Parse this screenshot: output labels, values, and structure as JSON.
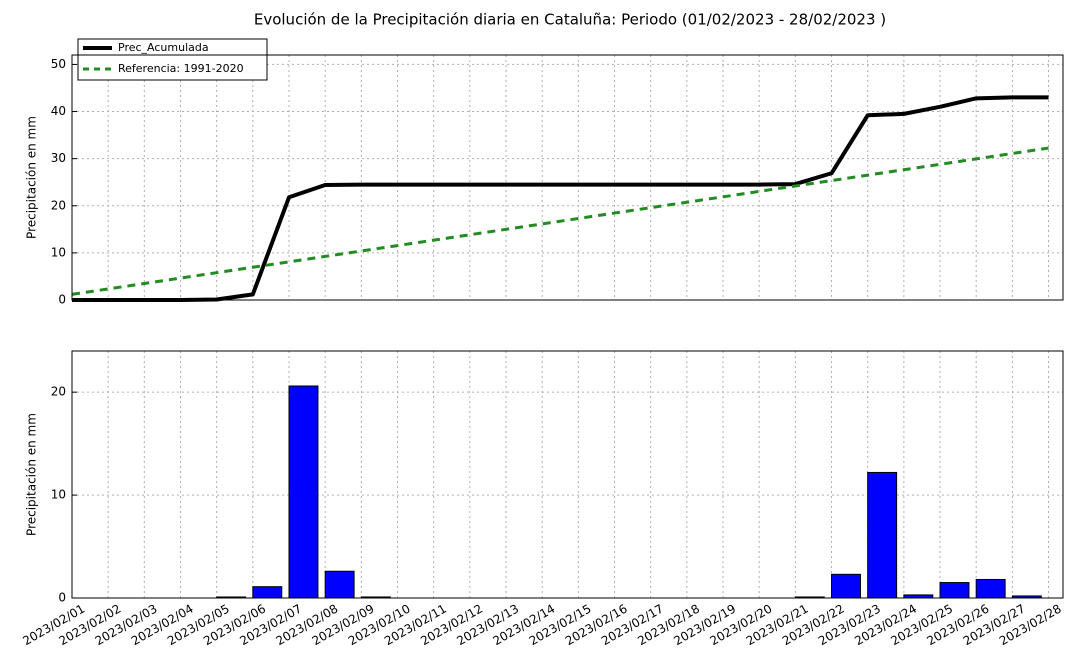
{
  "chart_data": [
    {
      "type": "line",
      "title": "Evolución de la Precipitación diaria en Cataluña:  Periodo (01/02/2023 - 28/02/2023 )",
      "ylabel": "Precipitación en mm",
      "ylim": [
        0,
        52
      ],
      "yticks": [
        0,
        10,
        20,
        30,
        40,
        50
      ],
      "grid": true,
      "legend": "upper-left",
      "series": [
        {
          "name": "Prec_Acumulada",
          "color": "#000000",
          "style": "solid",
          "values": [
            0,
            0,
            0,
            0,
            0.1,
            1.2,
            21.8,
            24.4,
            24.5,
            24.5,
            24.5,
            24.5,
            24.5,
            24.5,
            24.5,
            24.5,
            24.5,
            24.5,
            24.5,
            24.5,
            24.6,
            26.9,
            39.2,
            39.5,
            41.0,
            42.8,
            43.0,
            43.0
          ]
        },
        {
          "name": "Referencia: 1991-2020",
          "color": "#228b22",
          "style": "dashed",
          "values": [
            1.2,
            2.35,
            3.5,
            4.65,
            5.8,
            6.95,
            8.1,
            9.25,
            10.4,
            11.55,
            12.7,
            13.85,
            15.0,
            16.15,
            17.3,
            18.45,
            19.6,
            20.75,
            21.9,
            23.05,
            24.2,
            25.35,
            26.5,
            27.65,
            28.8,
            29.95,
            31.1,
            32.25
          ]
        }
      ]
    },
    {
      "type": "bar",
      "ylabel": "Precipitación en mm",
      "ylim": [
        0,
        24
      ],
      "yticks": [
        0,
        10,
        20
      ],
      "grid": true,
      "color": "#0000ff",
      "categories": [
        "2023/02/01",
        "2023/02/02",
        "2023/02/03",
        "2023/02/04",
        "2023/02/05",
        "2023/02/06",
        "2023/02/07",
        "2023/02/08",
        "2023/02/09",
        "2023/02/10",
        "2023/02/11",
        "2023/02/12",
        "2023/02/13",
        "2023/02/14",
        "2023/02/15",
        "2023/02/16",
        "2023/02/17",
        "2023/02/18",
        "2023/02/19",
        "2023/02/20",
        "2023/02/21",
        "2023/02/22",
        "2023/02/23",
        "2023/02/24",
        "2023/02/25",
        "2023/02/26",
        "2023/02/27",
        "2023/02/28"
      ],
      "values": [
        0,
        0,
        0,
        0,
        0.1,
        1.1,
        20.6,
        2.6,
        0.1,
        0,
        0,
        0,
        0,
        0,
        0,
        0,
        0,
        0,
        0,
        0,
        0.1,
        2.3,
        12.2,
        0.3,
        1.5,
        1.8,
        0.2,
        0
      ]
    }
  ]
}
